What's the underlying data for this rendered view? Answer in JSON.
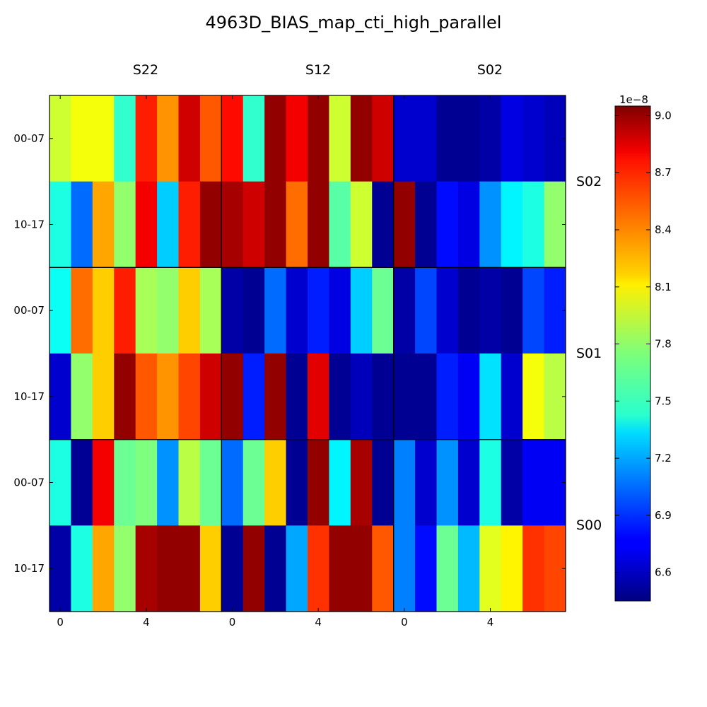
{
  "chart_data": {
    "type": "heatmap",
    "title": "4963D_BIAS_map_cti_high_parallel",
    "column_sensors": [
      "S22",
      "S12",
      "S02"
    ],
    "row_sensors": [
      "S02",
      "S01",
      "S00"
    ],
    "row_tick_labels": [
      "00-07",
      "10-17"
    ],
    "x_tick_labels": [
      "0",
      "4"
    ],
    "x_tick_values": [
      0,
      4
    ],
    "colorbar": {
      "multiplier": "1e−8",
      "min": 6.45,
      "max": 9.05,
      "ticks": [
        6.6,
        6.9,
        7.2,
        7.5,
        7.8,
        8.1,
        8.4,
        8.7,
        9.0
      ],
      "tick_labels": [
        "6.6",
        "6.9",
        "7.2",
        "7.5",
        "7.8",
        "8.1",
        "8.4",
        "8.7",
        "9.0"
      ],
      "colormap": "jet"
    },
    "units": "1e-8",
    "values": [
      [
        7.95,
        8.05,
        8.05,
        7.55,
        8.65,
        8.35,
        8.85,
        8.5,
        8.7,
        7.55,
        9.0,
        8.75,
        9.0,
        7.95,
        9.0,
        8.85,
        6.65,
        6.65,
        6.5,
        6.5,
        6.55,
        6.7,
        6.65,
        6.6
      ],
      [
        7.5,
        7.05,
        8.3,
        7.8,
        8.75,
        7.3,
        8.65,
        9.0,
        8.95,
        8.85,
        9.0,
        8.45,
        9.0,
        7.65,
        7.95,
        6.5,
        9.0,
        6.5,
        6.8,
        6.7,
        7.15,
        7.4,
        7.5,
        7.8
      ],
      [
        7.45,
        8.45,
        8.2,
        8.65,
        7.85,
        7.8,
        8.2,
        7.85,
        6.55,
        6.5,
        7.05,
        6.65,
        6.85,
        6.7,
        7.3,
        7.7,
        6.55,
        6.95,
        6.65,
        6.5,
        6.55,
        6.5,
        6.95,
        6.85
      ],
      [
        6.65,
        7.8,
        8.2,
        9.0,
        8.5,
        8.35,
        8.55,
        8.85,
        9.0,
        6.85,
        9.0,
        6.5,
        8.8,
        6.5,
        6.6,
        6.5,
        6.5,
        6.5,
        6.85,
        6.75,
        7.35,
        6.65,
        8.05,
        7.9
      ],
      [
        7.5,
        6.5,
        8.75,
        7.7,
        7.75,
        7.15,
        7.9,
        7.7,
        7.05,
        7.7,
        8.2,
        6.5,
        9.0,
        7.4,
        8.95,
        6.5,
        7.1,
        6.65,
        7.15,
        6.65,
        7.5,
        6.55,
        6.75,
        6.75
      ],
      [
        6.55,
        7.5,
        8.3,
        7.8,
        8.95,
        9.0,
        9.0,
        8.2,
        6.5,
        9.0,
        6.5,
        7.2,
        8.6,
        9.0,
        9.0,
        8.5,
        7.1,
        6.8,
        7.7,
        7.25,
        8.0,
        8.1,
        8.6,
        8.55
      ]
    ]
  }
}
